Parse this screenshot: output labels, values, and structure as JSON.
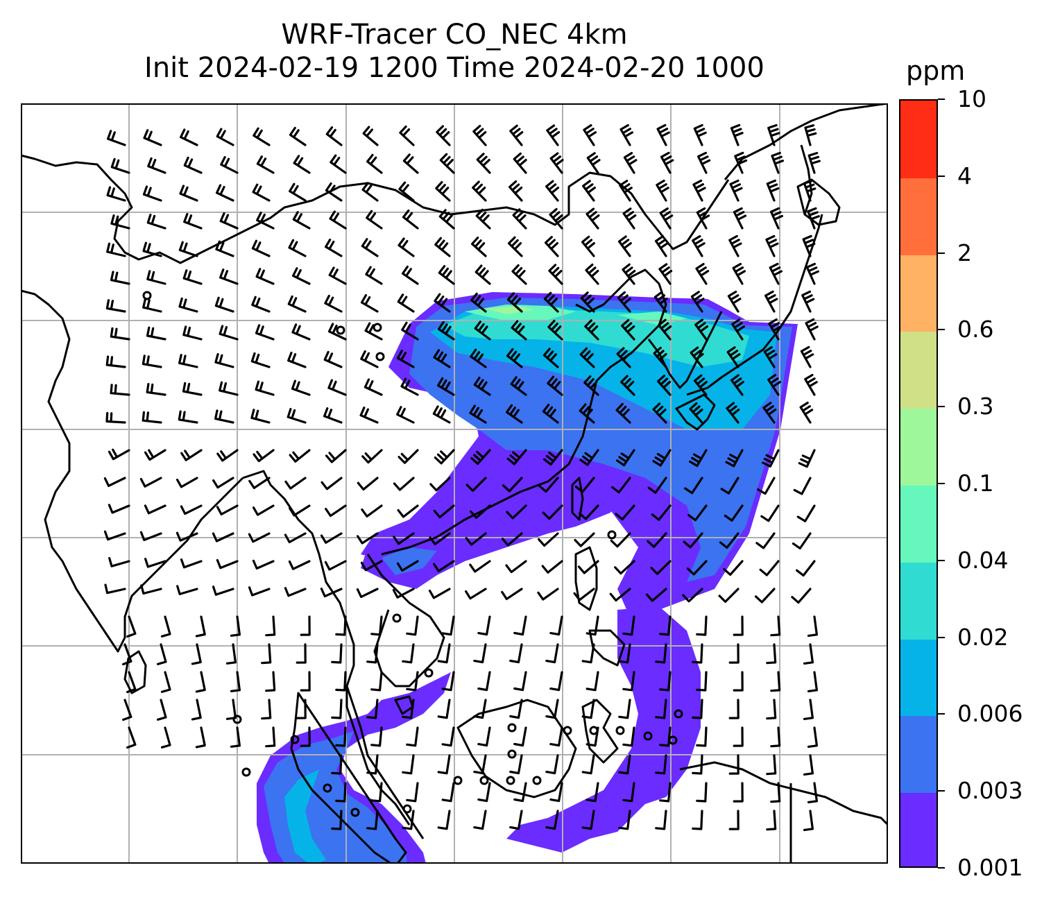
{
  "title": {
    "line1": "WRF-Tracer CO_NEC 4km",
    "line2": "Init 2024-02-19 1200 Time 2024-02-20 1000"
  },
  "colorbar": {
    "unit": "ppm",
    "levels": [
      "0.001",
      "0.003",
      "0.006",
      "0.02",
      "0.04",
      "0.1",
      "0.3",
      "0.6",
      "2",
      "4",
      "10"
    ],
    "colors": [
      "#6a2cff",
      "#3b73f1",
      "#06b3e8",
      "#30dcd2",
      "#66f7bd",
      "#9ef79b",
      "#cfe086",
      "#ffb164",
      "#ff6e3b",
      "#ff2c16"
    ]
  },
  "map": {
    "gridlines": "on",
    "gridline_color": "#b0b0b0",
    "coastline_color": "#000000",
    "wind_barb_color": "#000000",
    "variable": "CO_NEC tracer concentration",
    "plume_regions": [
      {
        "name": "plume-northeast-china-korea-japan",
        "dominant_level": "0.006-0.02",
        "peak_level": "0.1-0.3"
      },
      {
        "name": "plume-south-china-taiwan-philippines",
        "dominant_level": "0.001-0.003"
      },
      {
        "name": "plume-malay-peninsula-sumatra",
        "dominant_level": "0.003-0.006"
      }
    ]
  }
}
